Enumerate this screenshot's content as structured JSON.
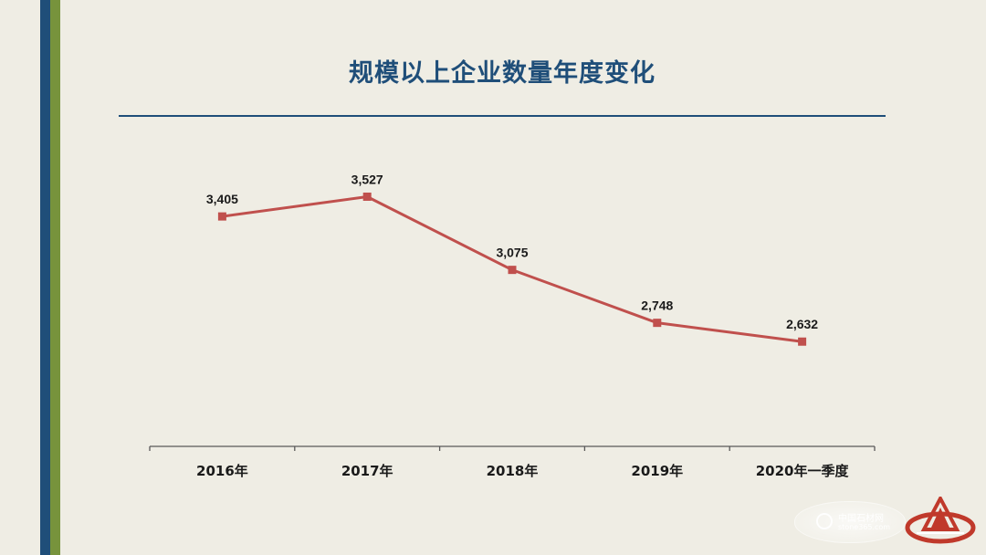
{
  "slide": {
    "title": "规模以上企业数量年度变化"
  },
  "colors": {
    "accent_blue": "#1f4e79",
    "accent_green": "#77933c",
    "series_red": "#c0504d",
    "background": "#efede4"
  },
  "watermark": {
    "line1": "中国石材网",
    "line2": "stone365.com"
  },
  "chart_data": {
    "type": "line",
    "categories": [
      "2016年",
      "2017年",
      "2018年",
      "2019年",
      "2020年一季度"
    ],
    "series": [
      {
        "values": [
          3405,
          3527,
          3075,
          2748,
          2632
        ]
      }
    ],
    "data_labels": [
      "3,405",
      "3,527",
      "3,075",
      "2,748",
      "2,632"
    ],
    "ylim": [
      1985,
      3727
    ],
    "grid": false,
    "legend": "none",
    "marker": "square"
  }
}
